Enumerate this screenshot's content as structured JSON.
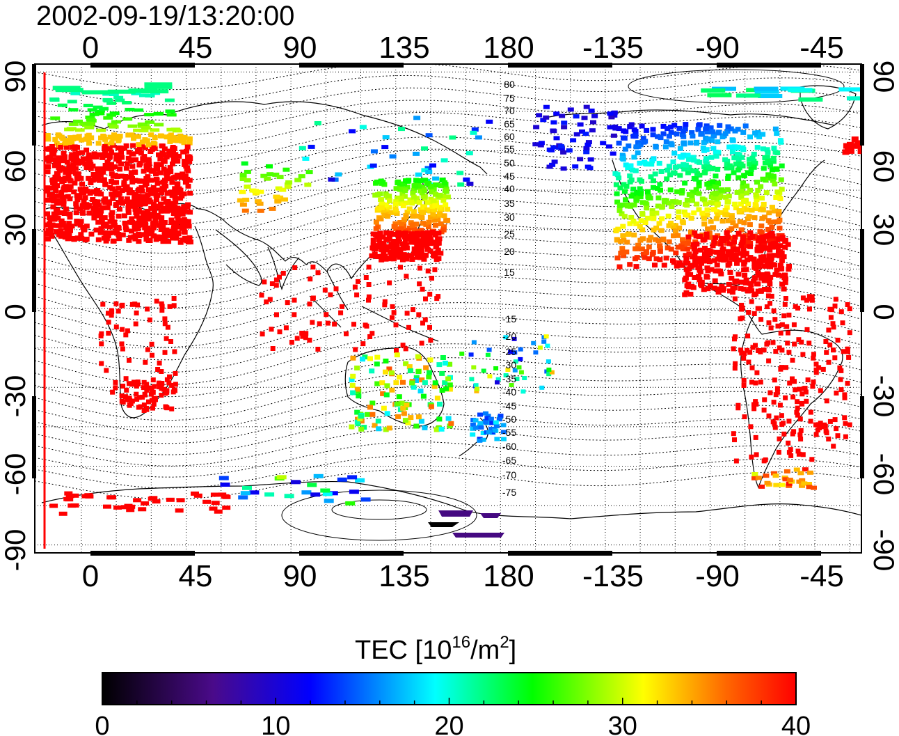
{
  "timestamp": "2002-09-19/13:20:00",
  "map": {
    "lon_ticks": [
      "0",
      "45",
      "90",
      "135",
      "180",
      "-135",
      "-90",
      "-45"
    ],
    "lat_ticks_left": [
      "90",
      "60",
      "30",
      "0",
      "-30",
      "-60",
      "-90"
    ],
    "lat_ticks_right": [
      "90",
      "60",
      "30",
      "0",
      "-30",
      "-60",
      "-90"
    ],
    "contour_labels": [
      "80",
      "75",
      "70",
      "65",
      "60",
      "55",
      "50",
      "45",
      "40",
      "35",
      "30",
      "25",
      "20",
      "15",
      "-15",
      "-20",
      "-25",
      "-30",
      "-35",
      "-40",
      "-45",
      "-50",
      "-55",
      "-60",
      "-65",
      "-70",
      "-75"
    ]
  },
  "colorbar": {
    "title_prefix": "TEC  [10",
    "title_exp1": "16",
    "title_mid": "/m",
    "title_exp2": "2",
    "title_suffix": "]",
    "tick_labels": [
      "0",
      "10",
      "20",
      "30",
      "40"
    ],
    "min": 0,
    "max": 40,
    "stops": [
      "#000000",
      "#4a0a8a",
      "#0000ff",
      "#00ffff",
      "#00ff00",
      "#ffff00",
      "#ff0000"
    ]
  }
}
